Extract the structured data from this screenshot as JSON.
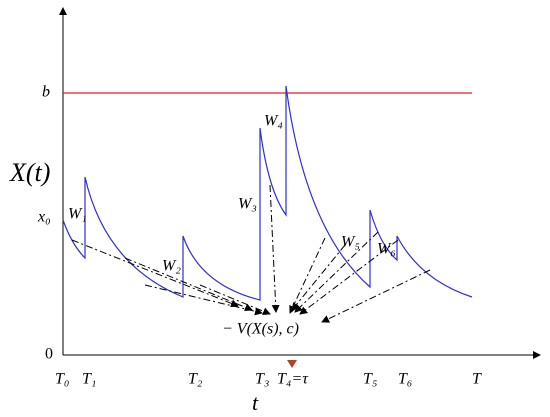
{
  "labels": {
    "b": "b",
    "y_axis": "X(t)",
    "x0": "x₀",
    "origin": "0",
    "x_axis": "t",
    "functional": "− V(X(s), c)"
  },
  "w_labels": [
    "W₁",
    "W₂",
    "W₃",
    "W₄",
    "W₅",
    "W₆"
  ],
  "t_labels": [
    "T₀",
    "T₁",
    "T₂",
    "T₃",
    "T₄=τ",
    "T₅",
    "T₆",
    "T"
  ]
}
